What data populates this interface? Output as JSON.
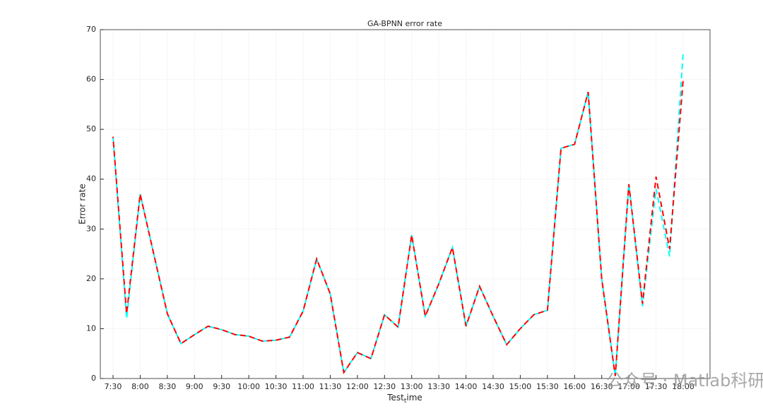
{
  "chart_data": {
    "type": "line",
    "title": "GA-BPNN error rate",
    "x_label": "Test_time",
    "y_label": "Error rate",
    "categories": [
      "7:30",
      null,
      "8:00",
      null,
      "8:30",
      null,
      "9:00",
      null,
      "9:30",
      null,
      "10:00",
      null,
      "10:30",
      null,
      "11:00",
      null,
      "11:30",
      null,
      "12:00",
      null,
      "12:30",
      null,
      "13:00",
      null,
      "13:30",
      null,
      "14:00",
      null,
      "14:30",
      null,
      "15:00",
      null,
      "15:30",
      null,
      "16:00",
      null,
      "16:30",
      null,
      "17:00",
      null,
      "17:30",
      null,
      "18:00"
    ],
    "series": [
      {
        "color": "#00ffff",
        "values": [
          48.5,
          12,
          37,
          25,
          13,
          7,
          8.8,
          10.5,
          9.8,
          8.8,
          8.5,
          7.5,
          7.7,
          8.3,
          13.5,
          24,
          17,
          1.2,
          5.2,
          4,
          12.8,
          10.3,
          28.8,
          12.5,
          19,
          26.3,
          10.5,
          18.5,
          12.5,
          6.8,
          10,
          12.8,
          13.7,
          46.2,
          47,
          57.5,
          20,
          0.5,
          39,
          14.5,
          38,
          24.5,
          65.5
        ]
      },
      {
        "color": "#ff0000",
        "values": [
          48.5,
          13,
          37,
          25,
          13,
          7,
          8.8,
          10.5,
          9.8,
          8.8,
          8.5,
          7.5,
          7.7,
          8.3,
          13.5,
          24,
          17,
          1.2,
          5.2,
          4,
          12.8,
          10.3,
          28.8,
          12.5,
          19,
          26.3,
          10.5,
          18.5,
          12.5,
          6.8,
          10,
          12.8,
          13.7,
          46.2,
          47,
          57.5,
          20,
          0.5,
          39,
          15,
          40.5,
          26,
          60
        ]
      }
    ],
    "ylim": [
      0,
      70
    ],
    "yticks": [
      0,
      10,
      20,
      30,
      40,
      50,
      60,
      70
    ],
    "grid": true,
    "watermark": "公众号 · Matlab科研助手"
  }
}
